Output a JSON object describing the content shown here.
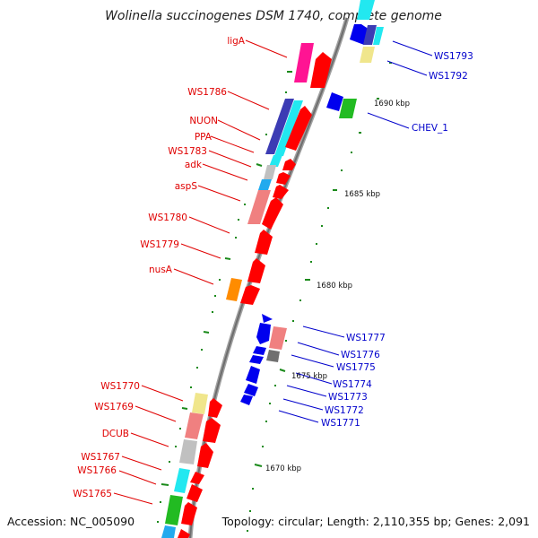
{
  "title": "Wolinella succinogenes DSM 1740, complete genome",
  "footer": {
    "accession": "Accession: NC_005090",
    "topology": "Topology: circular; Length: 2,110,355 bp; Genes: 2,091"
  },
  "colors": {
    "red": "#ff0000",
    "blue": "#0000ee",
    "magenta": "#ff1493",
    "navy": "#3c3cb4",
    "cyan": "#22e8f0",
    "salmon": "#f08080",
    "gray": "#c0c0c0",
    "darkgray": "#707070",
    "orange": "#ff8c00",
    "yellow": "#f0e68c",
    "green": "#22bb22"
  },
  "scale_labels": [
    "1690 kbp",
    "1685 kbp",
    "1680 kbp",
    "1675 kbp",
    "1670 kbp"
  ],
  "left_labels": [
    "ligA",
    "WS1786",
    "NUON",
    "PPA",
    "WS1783",
    "adk",
    "aspS",
    "WS1780",
    "WS1779",
    "nusA",
    "WS1770",
    "WS1769",
    "DCUB",
    "WS1767",
    "WS1766",
    "WS1765"
  ],
  "right_labels": [
    "WS1793",
    "WS1792",
    "CHEV_1",
    "WS1777",
    "WS1776",
    "WS1775",
    "WS1774",
    "WS1773",
    "WS1772",
    "WS1771"
  ]
}
